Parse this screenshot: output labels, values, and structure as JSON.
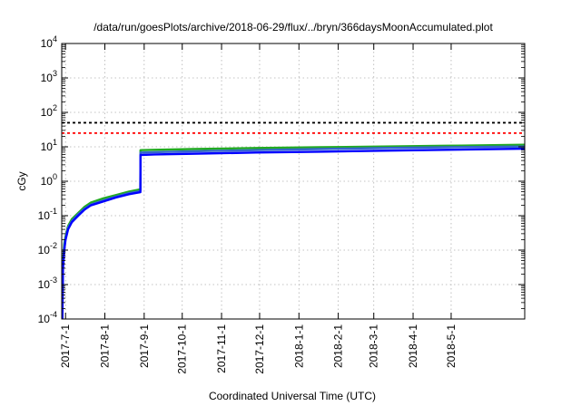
{
  "chart_data": {
    "type": "line",
    "title": "/data/run/goesPlots/archive/2018-06-29/flux/../bryn/366daysMoonAccumulated.plot",
    "xlabel": "Coordinated Universal Time (UTC)",
    "ylabel": "cGy",
    "y_scale": "log",
    "ylim_exp": [
      -4,
      4
    ],
    "y_tick_labels": [
      {
        "base": "10",
        "exp": "-4"
      },
      {
        "base": "10",
        "exp": "-3"
      },
      {
        "base": "10",
        "exp": "-2"
      },
      {
        "base": "10",
        "exp": "-1"
      },
      {
        "base": "10",
        "exp": "0"
      },
      {
        "base": "10",
        "exp": "1"
      },
      {
        "base": "10",
        "exp": "2"
      },
      {
        "base": "10",
        "exp": "3"
      },
      {
        "base": "10",
        "exp": "4"
      }
    ],
    "xlim_days": [
      -3,
      362
    ],
    "x_ticks": [
      {
        "label": "2017-7-1",
        "day": 0
      },
      {
        "label": "2017-8-1",
        "day": 31
      },
      {
        "label": "2017-9-1",
        "day": 62
      },
      {
        "label": "2017-10-1",
        "day": 92
      },
      {
        "label": "2017-11-1",
        "day": 123
      },
      {
        "label": "2017-12-1",
        "day": 153
      },
      {
        "label": "2018-1-1",
        "day": 184
      },
      {
        "label": "2018-2-1",
        "day": 215
      },
      {
        "label": "2018-3-1",
        "day": 243
      },
      {
        "label": "2018-4-1",
        "day": 274
      },
      {
        "label": "2018-5-1",
        "day": 304
      }
    ],
    "grid": true,
    "reference_lines": [
      {
        "value": 50,
        "color": "#000000",
        "style": "dashed"
      },
      {
        "value": 25,
        "color": "#ff0000",
        "style": "dashed"
      }
    ],
    "series": [
      {
        "color": "#22aa22",
        "points": [
          [
            -2.5,
            0.0003
          ],
          [
            -2,
            0.005
          ],
          [
            -1,
            0.015
          ],
          [
            0,
            0.025
          ],
          [
            2,
            0.05
          ],
          [
            5,
            0.08
          ],
          [
            10,
            0.12
          ],
          [
            15,
            0.18
          ],
          [
            20,
            0.24
          ],
          [
            30,
            0.32
          ],
          [
            40,
            0.4
          ],
          [
            50,
            0.5
          ],
          [
            59,
            0.58
          ],
          [
            59.1,
            8.0
          ],
          [
            70,
            8.2
          ],
          [
            100,
            8.6
          ],
          [
            150,
            9.2
          ],
          [
            200,
            9.7
          ],
          [
            250,
            10.2
          ],
          [
            300,
            10.7
          ],
          [
            362,
            11.5
          ]
        ]
      },
      {
        "color": "#3366cc",
        "points": [
          [
            -2.5,
            0.0002
          ],
          [
            -2,
            0.004
          ],
          [
            -1,
            0.012
          ],
          [
            0,
            0.022
          ],
          [
            2,
            0.045
          ],
          [
            5,
            0.07
          ],
          [
            10,
            0.11
          ],
          [
            15,
            0.16
          ],
          [
            20,
            0.21
          ],
          [
            30,
            0.28
          ],
          [
            40,
            0.36
          ],
          [
            50,
            0.45
          ],
          [
            59,
            0.52
          ],
          [
            59.1,
            6.8
          ],
          [
            70,
            7.0
          ],
          [
            100,
            7.4
          ],
          [
            150,
            8.0
          ],
          [
            200,
            8.6
          ],
          [
            250,
            9.2
          ],
          [
            300,
            9.7
          ],
          [
            362,
            10.2
          ]
        ]
      },
      {
        "color": "#0000ff",
        "points": [
          [
            -2.5,
            0.0001
          ],
          [
            -2,
            0.003
          ],
          [
            -1,
            0.01
          ],
          [
            0,
            0.02
          ],
          [
            2,
            0.04
          ],
          [
            5,
            0.065
          ],
          [
            10,
            0.1
          ],
          [
            15,
            0.15
          ],
          [
            20,
            0.2
          ],
          [
            30,
            0.26
          ],
          [
            40,
            0.34
          ],
          [
            50,
            0.42
          ],
          [
            59,
            0.48
          ],
          [
            59.1,
            5.8
          ],
          [
            70,
            6.0
          ],
          [
            100,
            6.3
          ],
          [
            150,
            6.8
          ],
          [
            200,
            7.2
          ],
          [
            250,
            7.7
          ],
          [
            300,
            8.2
          ],
          [
            362,
            8.8
          ]
        ]
      }
    ]
  }
}
